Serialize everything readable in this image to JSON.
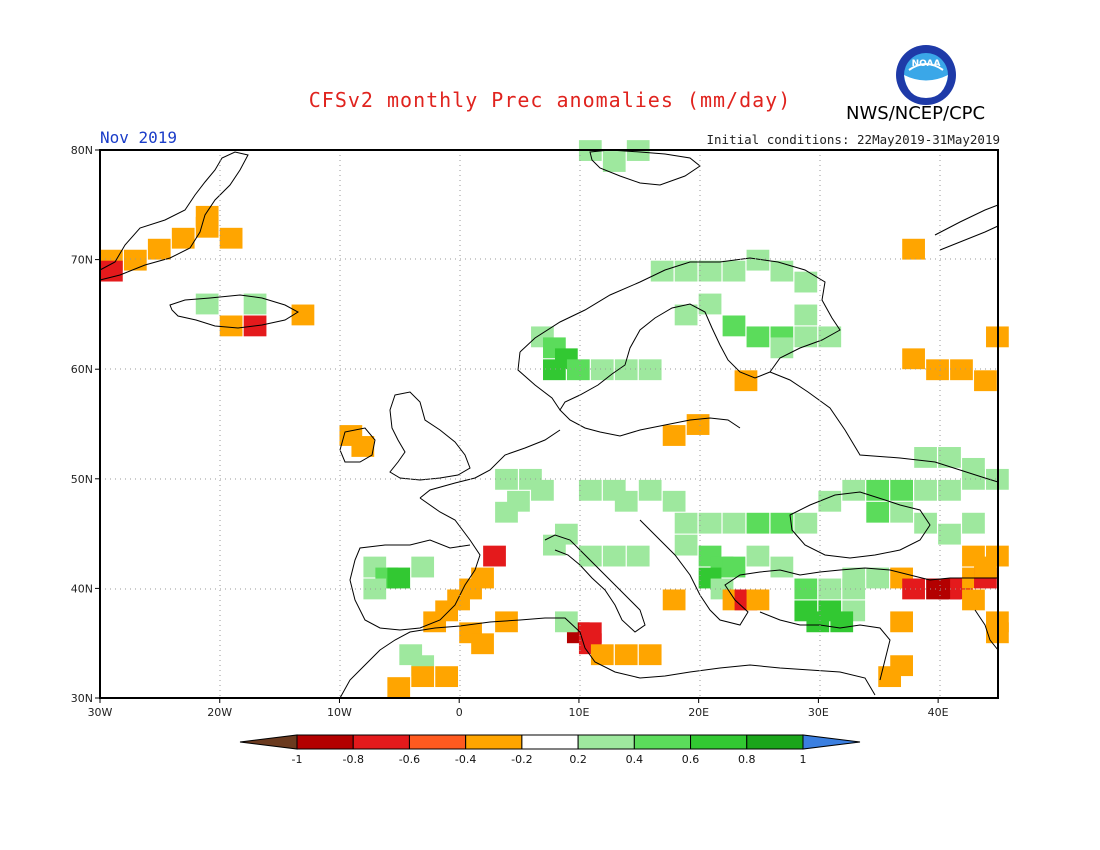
{
  "header": {
    "title": "CFSv2 monthly Prec anomalies (mm/day)",
    "month": "Nov 2019",
    "initial_conditions": "Initial conditions: 22May2019-31May2019",
    "organization": "NWS/NCEP/CPC",
    "logo_text": "NOAA"
  },
  "map": {
    "lon_ticks": [
      "30W",
      "20W",
      "10W",
      "0",
      "10E",
      "20E",
      "30E",
      "40E"
    ],
    "lat_ticks": [
      "30N",
      "40N",
      "50N",
      "60N",
      "70N",
      "80N"
    ],
    "extent": {
      "lon_min": -30,
      "lon_max": 45,
      "lat_min": 30,
      "lat_max": 80
    }
  },
  "legend": {
    "labels": [
      "-1",
      "-0.8",
      "-0.6",
      "-0.4",
      "-0.2",
      "0.2",
      "0.4",
      "0.6",
      "0.8",
      "1"
    ],
    "colors": [
      "#6b3a1f",
      "#b30000",
      "#e41a1c",
      "#ff5a1f",
      "#ffa500",
      "#ffffff",
      "#9ee89e",
      "#5bdc5b",
      "#32c832",
      "#1aa51a",
      "#3b7fe0"
    ]
  }
}
